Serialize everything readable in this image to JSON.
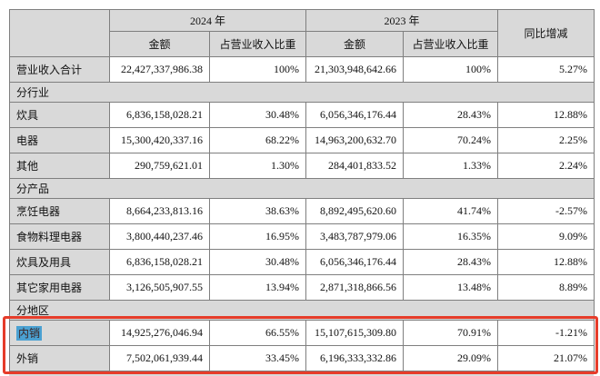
{
  "table": {
    "header": {
      "corner": "",
      "year_2024": "2024 年",
      "year_2023": "2023 年",
      "yoy": "同比增减",
      "amount_2024": "金额",
      "pct_2024": "占营业收入比重",
      "amount_2023": "金额",
      "pct_2023": "占营业收入比重"
    },
    "rows": [
      {
        "label": "营业收入合计",
        "amount_2024": "22,427,337,986.38",
        "pct_2024": "100%",
        "amount_2023": "21,303,948,642.66",
        "pct_2023": "100%",
        "yoy": "5.27%"
      },
      {
        "section": true,
        "label": "分行业"
      },
      {
        "label": "炊具",
        "amount_2024": "6,836,158,028.21",
        "pct_2024": "30.48%",
        "amount_2023": "6,056,346,176.44",
        "pct_2023": "28.43%",
        "yoy": "12.88%"
      },
      {
        "label": "电器",
        "amount_2024": "15,300,420,337.16",
        "pct_2024": "68.22%",
        "amount_2023": "14,963,200,632.70",
        "pct_2023": "70.24%",
        "yoy": "2.25%"
      },
      {
        "label": "其他",
        "amount_2024": "290,759,621.01",
        "pct_2024": "1.30%",
        "amount_2023": "284,401,833.52",
        "pct_2023": "1.33%",
        "yoy": "2.24%"
      },
      {
        "section": true,
        "label": "分产品"
      },
      {
        "label": "烹饪电器",
        "amount_2024": "8,664,233,813.16",
        "pct_2024": "38.63%",
        "amount_2023": "8,892,495,620.60",
        "pct_2023": "41.74%",
        "yoy": "-2.57%"
      },
      {
        "label": "食物料理电器",
        "amount_2024": "3,800,440,237.46",
        "pct_2024": "16.95%",
        "amount_2023": "3,483,787,979.06",
        "pct_2023": "16.35%",
        "yoy": "9.09%"
      },
      {
        "label": "炊具及用具",
        "amount_2024": "6,836,158,028.21",
        "pct_2024": "30.48%",
        "amount_2023": "6,056,346,176.44",
        "pct_2023": "28.43%",
        "yoy": "12.88%"
      },
      {
        "label": "其它家用电器",
        "amount_2024": "3,126,505,907.55",
        "pct_2024": "13.94%",
        "amount_2023": "2,871,318,866.56",
        "pct_2023": "13.48%",
        "yoy": "8.89%"
      },
      {
        "section": true,
        "label": "分地区"
      },
      {
        "label": "内销",
        "selected": true,
        "amount_2024": "14,925,276,046.94",
        "pct_2024": "66.55%",
        "amount_2023": "15,107,615,309.80",
        "pct_2023": "70.91%",
        "yoy": "-1.21%"
      },
      {
        "label": "外销",
        "amount_2024": "7,502,061,939.44",
        "pct_2024": "33.45%",
        "amount_2023": "6,196,333,332.86",
        "pct_2023": "29.09%",
        "yoy": "21.07%"
      }
    ]
  },
  "annotation": {
    "type": "red-rectangle",
    "around_rows": [
      "内销",
      "外销"
    ],
    "selected_text": "内销"
  },
  "colors": {
    "header_gray": "#d9d9d9",
    "border": "#7f7f7f",
    "annotation_red": "#e63c2a",
    "selection_blue": "#4ba1d2"
  }
}
